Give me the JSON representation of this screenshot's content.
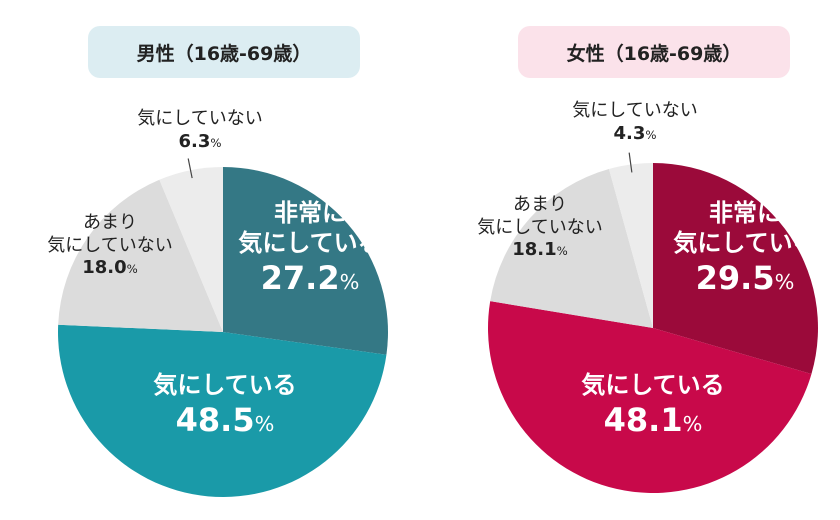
{
  "chart_data": [
    {
      "type": "pie",
      "title": "男性（16歳‐69歳）",
      "categories": [
        "非常に気にしている",
        "気にしている",
        "あまり気にしていない",
        "気にしていない"
      ],
      "values": [
        27.2,
        48.5,
        18.0,
        6.3
      ],
      "value_labels": [
        "27.2",
        "48.5",
        "18.0",
        "6.3"
      ],
      "label_lines": [
        [
          "非常に",
          "気にしている"
        ],
        [
          "気にしている"
        ],
        [
          "あまり",
          "気にしていない"
        ],
        [
          "気にしていない"
        ]
      ],
      "colors": [
        "#347885",
        "#1a9aa8",
        "#dcdcdc",
        "#ececec"
      ]
    },
    {
      "type": "pie",
      "title": "女性（16歳‐69歳）",
      "categories": [
        "非常に気にしている",
        "気にしている",
        "あまり気にしていない",
        "気にしていない"
      ],
      "values": [
        29.5,
        48.1,
        18.1,
        4.3
      ],
      "value_labels": [
        "29.5",
        "48.1",
        "18.1",
        "4.3"
      ],
      "label_lines": [
        [
          "非常に",
          "気にしている"
        ],
        [
          "気にしている"
        ],
        [
          "あまり",
          "気にしていない"
        ],
        [
          "気にしていない"
        ]
      ],
      "colors": [
        "#9b0a3a",
        "#c8094a",
        "#dcdcdc",
        "#ececec"
      ]
    }
  ],
  "unit": "%"
}
